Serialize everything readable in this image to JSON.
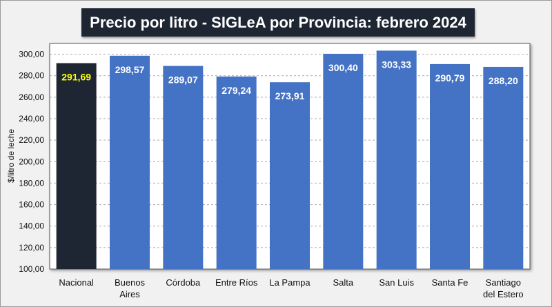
{
  "chart_data": {
    "type": "bar",
    "title": "Precio por litro - SIGLeA por Provincia: febrero 2024",
    "xlabel": "",
    "ylabel": "$/litro de leche",
    "ylim": [
      100,
      310
    ],
    "yticks": [
      "100,00",
      "120,00",
      "140,00",
      "160,00",
      "180,00",
      "200,00",
      "220,00",
      "240,00",
      "260,00",
      "280,00",
      "300,00"
    ],
    "ytick_values": [
      100,
      120,
      140,
      160,
      180,
      200,
      220,
      240,
      260,
      280,
      300
    ],
    "grid": true,
    "categories": [
      [
        "Nacional"
      ],
      [
        "Buenos",
        "Aires"
      ],
      [
        "Córdoba"
      ],
      [
        "Entre Ríos"
      ],
      [
        "La Pampa"
      ],
      [
        "Salta"
      ],
      [
        "San Luis"
      ],
      [
        "Santa Fe"
      ],
      [
        "Santiago",
        "del Estero"
      ]
    ],
    "values": [
      291.69,
      298.57,
      289.07,
      279.24,
      273.91,
      300.4,
      303.33,
      290.79,
      288.2
    ],
    "value_labels": [
      "291,69",
      "298,57",
      "289,07",
      "279,24",
      "273,91",
      "300,40",
      "303,33",
      "290,79",
      "288,20"
    ],
    "colors": {
      "highlight": "#1f2633",
      "bar": "#4472c4",
      "highlight_label": "#ffff00",
      "label": "#ffffff"
    }
  }
}
